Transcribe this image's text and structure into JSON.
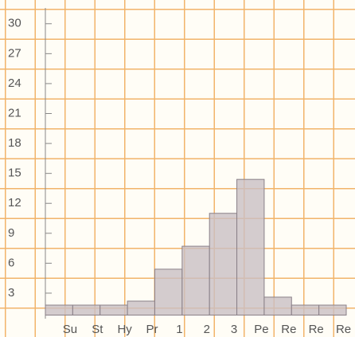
{
  "chart_data": {
    "type": "bar",
    "categories": [
      "Su",
      "St",
      "Hy",
      "Pr",
      "1",
      "2",
      "3",
      "Pe",
      "Re",
      "Re",
      "Re"
    ],
    "values": [
      1.8,
      1.8,
      1.8,
      2.2,
      5.4,
      7.7,
      11,
      14.4,
      2.6,
      1.8,
      1.8
    ],
    "color": "#c9bfc4",
    "ylim": [
      0.8,
      31.1
    ],
    "yticks": [
      3,
      6,
      9,
      12,
      15,
      18,
      21,
      24,
      27,
      30
    ]
  }
}
